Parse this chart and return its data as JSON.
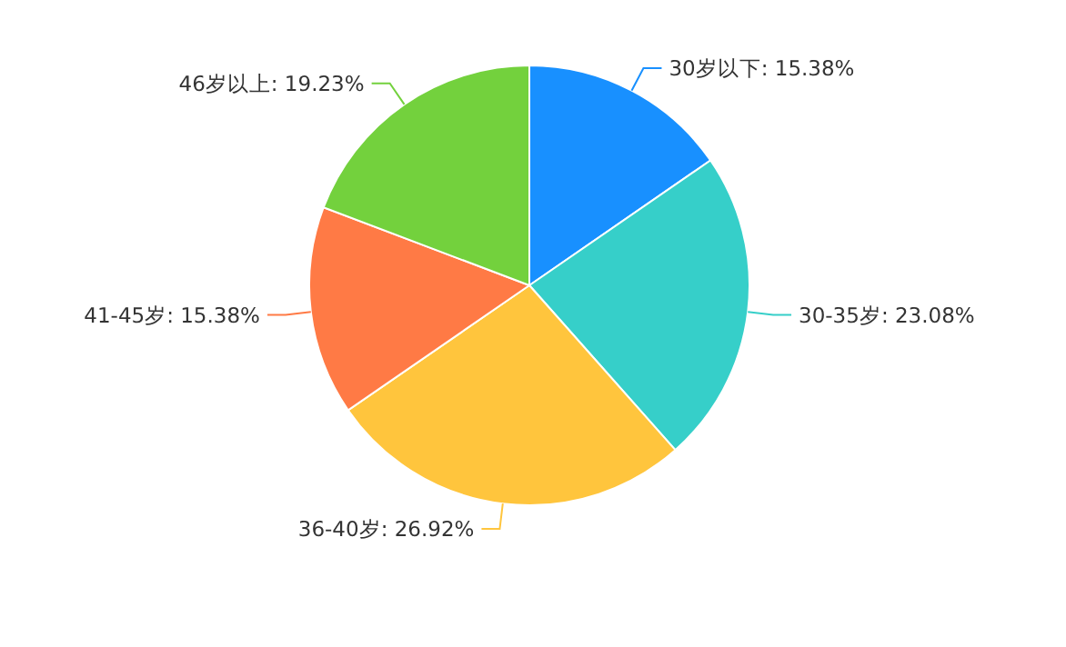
{
  "chart_data": {
    "type": "pie",
    "categories": [
      "30岁以下",
      "30-35岁",
      "36-40岁",
      "41-45岁",
      "46岁以上"
    ],
    "values": [
      15.38,
      23.08,
      26.92,
      15.38,
      19.23
    ],
    "colors": [
      "#1890ff",
      "#36cfc9",
      "#ffc53d",
      "#ff7a45",
      "#73d13d"
    ],
    "value_labels": [
      ": 15.38%",
      ": 23.08%",
      ": 26.92%",
      ": 15.38%",
      ": 19.23%"
    ]
  }
}
